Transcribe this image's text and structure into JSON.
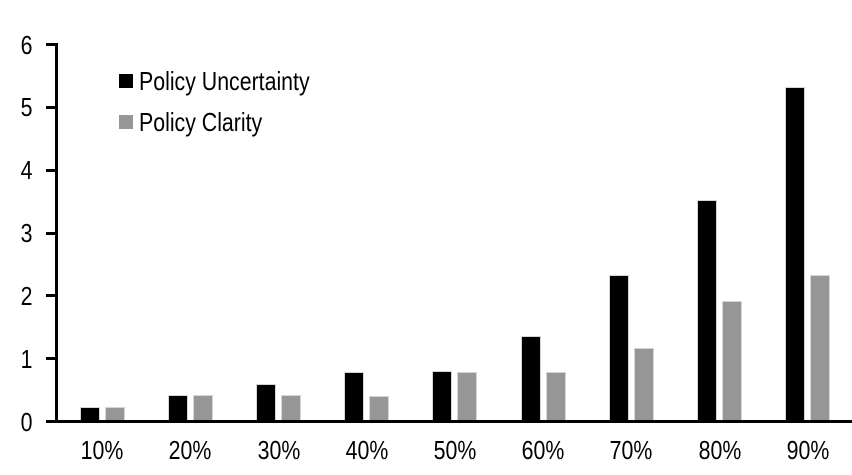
{
  "chart_data": {
    "type": "bar",
    "title": "",
    "xlabel": "",
    "ylabel": "",
    "categories": [
      "10%",
      "20%",
      "30%",
      "40%",
      "50%",
      "60%",
      "70%",
      "80%",
      "90%"
    ],
    "series": [
      {
        "name": "Policy Uncertainty",
        "color": "#000000",
        "values": [
          0.2,
          0.4,
          0.57,
          0.76,
          0.78,
          1.33,
          2.3,
          3.5,
          5.3
        ]
      },
      {
        "name": "Policy Clarity",
        "color": "#969696",
        "values": [
          0.2,
          0.4,
          0.4,
          0.39,
          0.77,
          0.77,
          1.15,
          1.9,
          2.3
        ]
      }
    ],
    "y_axis": {
      "min": 0,
      "max": 6,
      "tick_step": 1,
      "tick_labels": [
        "0",
        "1",
        "2",
        "3",
        "4",
        "5",
        "6"
      ]
    },
    "legend_position": "top-left-inside",
    "grid": false,
    "bar_border_color": "#d6d6d6"
  }
}
